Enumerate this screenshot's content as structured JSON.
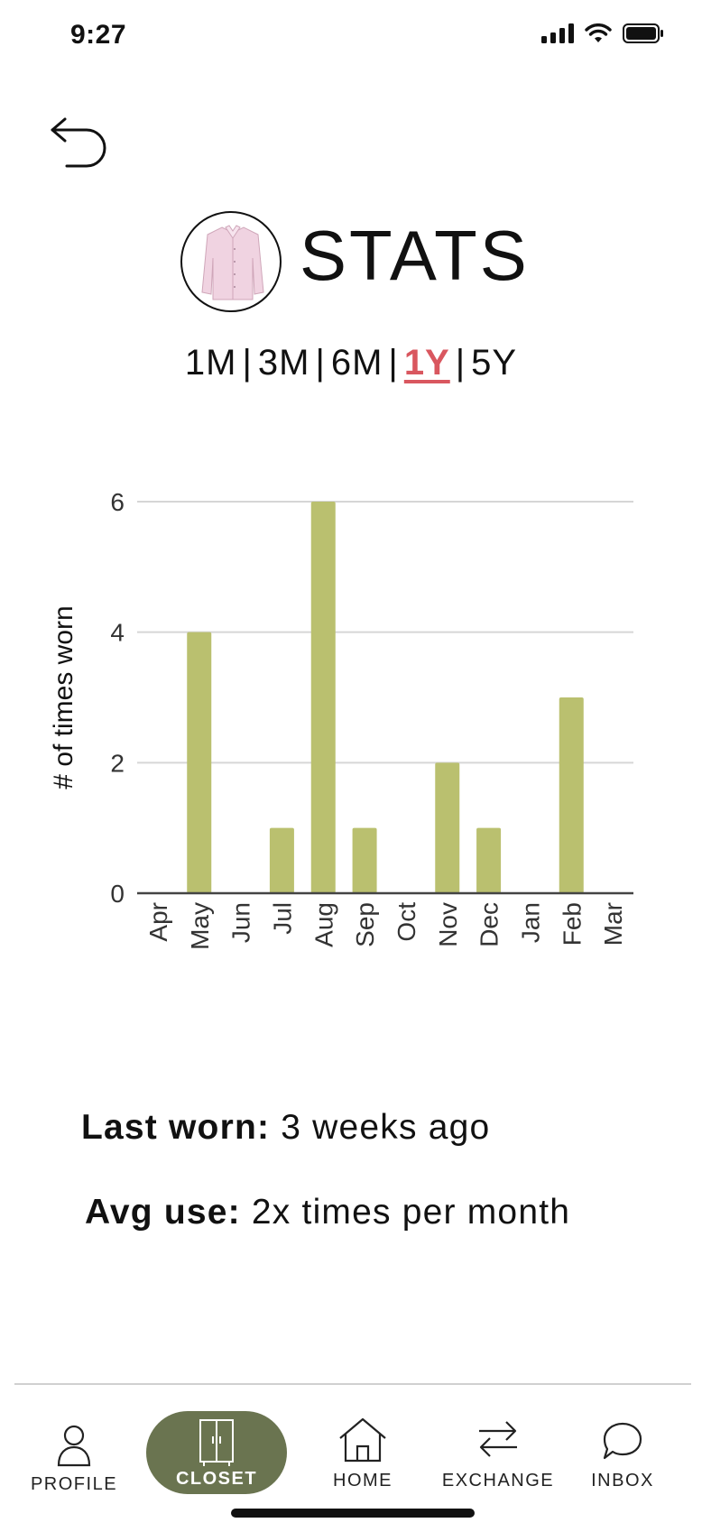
{
  "status_bar": {
    "time": "9:27"
  },
  "header": {
    "title": "STATS",
    "item": "pink dress shirt"
  },
  "range_tabs": {
    "items": [
      "1M",
      "3M",
      "6M",
      "1Y",
      "5Y"
    ],
    "active": "1Y"
  },
  "chart_data": {
    "type": "bar",
    "categories": [
      "Apr",
      "May",
      "Jun",
      "Jul",
      "Aug",
      "Sep",
      "Oct",
      "Nov",
      "Dec",
      "Jan",
      "Feb",
      "Mar"
    ],
    "values": [
      0,
      4,
      0,
      1,
      6,
      1,
      0,
      2,
      1,
      0,
      3,
      0
    ],
    "ylabel": "# of times worn",
    "xlabel": "",
    "ylim": [
      0,
      6
    ],
    "yticks": [
      "0",
      "2",
      "4",
      "6"
    ],
    "grid": true,
    "bar_color": "#bac06f"
  },
  "stats": {
    "last_worn_label": "Last worn:",
    "last_worn_value": "3 weeks ago",
    "avg_use_label": "Avg use:",
    "avg_use_value": "2x times per month"
  },
  "tab_bar": {
    "items": [
      {
        "label": "PROFILE",
        "icon": "person-icon"
      },
      {
        "label": "CLOSET",
        "icon": "wardrobe-icon",
        "active": true
      },
      {
        "label": "HOME",
        "icon": "house-icon"
      },
      {
        "label": "EXCHANGE",
        "icon": "exchange-arrows-icon"
      },
      {
        "label": "INBOX",
        "icon": "chat-bubble-icon"
      }
    ],
    "active_color": "#6a7450"
  }
}
